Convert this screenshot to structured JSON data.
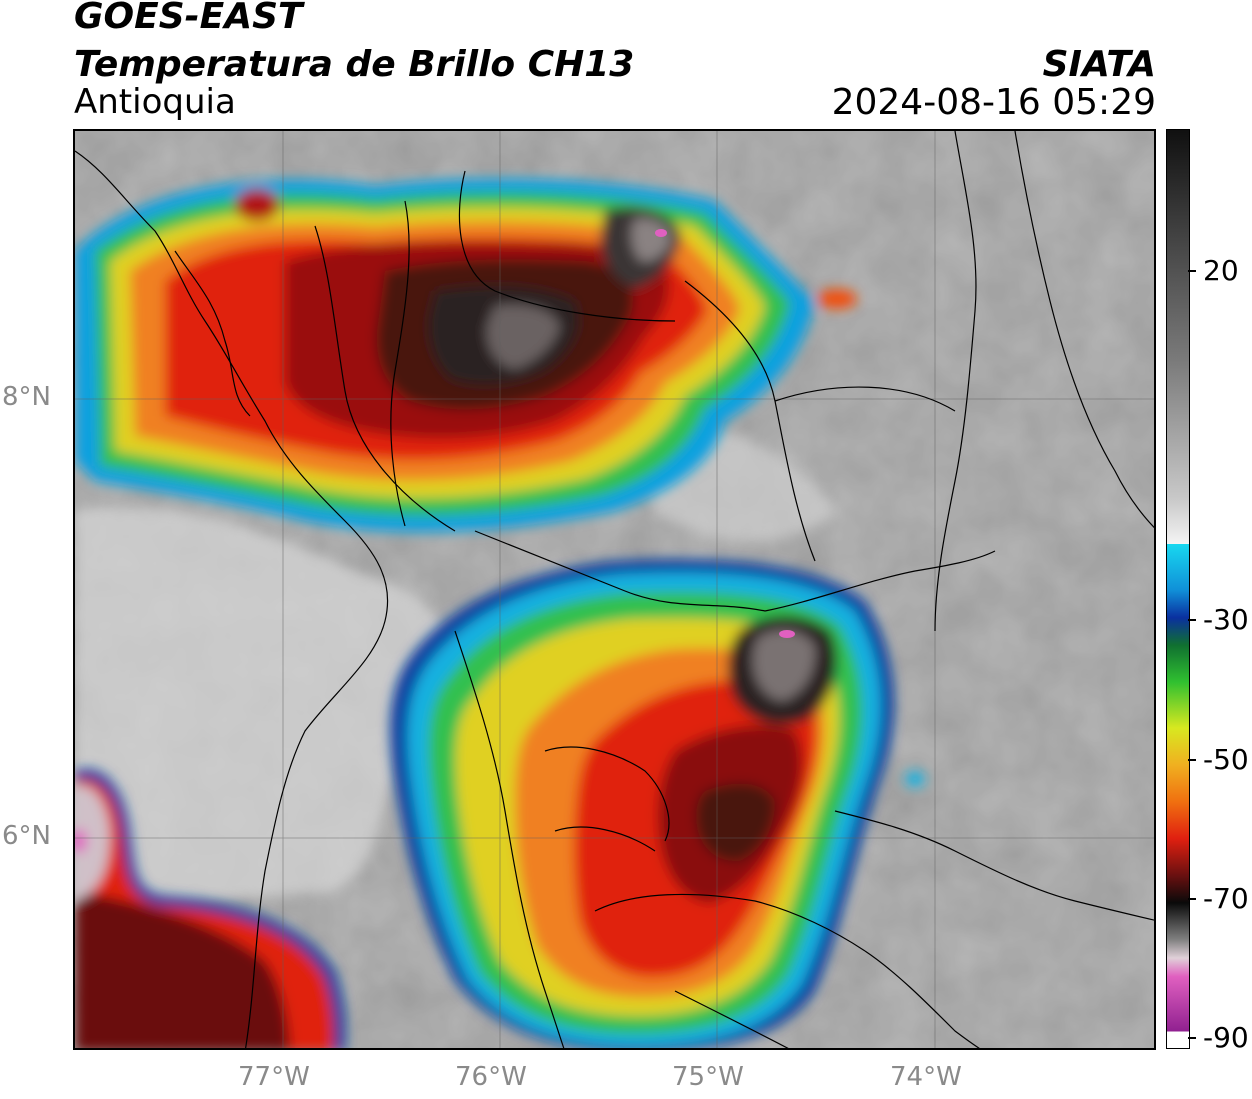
{
  "header": {
    "satellite": "GOES-EAST",
    "product": "Temperatura de Brillo CH13",
    "region": "Antioquia",
    "source": "SIATA",
    "timestamp": "2024-08-16 05:29"
  },
  "map": {
    "lon_ticks": [
      {
        "value": -77,
        "label": "77°W"
      },
      {
        "value": -76,
        "label": "76°W"
      },
      {
        "value": -75,
        "label": "75°W"
      },
      {
        "value": -74,
        "label": "74°W"
      }
    ],
    "lat_ticks": [
      {
        "value": 8,
        "label": "8°N"
      },
      {
        "value": 6,
        "label": "6°N"
      }
    ],
    "extent": {
      "lon_min": -77.95,
      "lon_max": -72.98,
      "lat_min": 5.12,
      "lat_max": 9.22
    },
    "colors": {
      "warm_background": "#9a9a9a",
      "cold_core": "#3a1010",
      "overshoot": "#e060c0"
    }
  },
  "colorbar": {
    "min": -90,
    "max": 35,
    "ticks": [
      {
        "value": 20,
        "label": "20"
      },
      {
        "value": -30,
        "label": "-30"
      },
      {
        "value": -50,
        "label": "-50"
      },
      {
        "value": -70,
        "label": "-70"
      },
      {
        "value": -90,
        "label": "-90"
      }
    ]
  }
}
